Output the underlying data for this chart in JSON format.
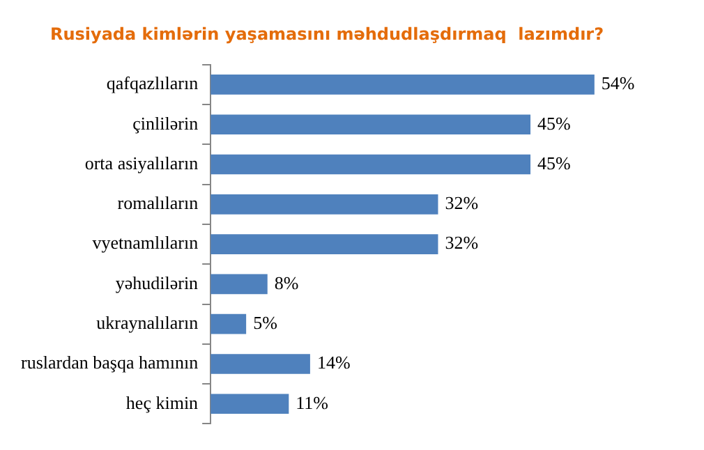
{
  "chart_data": {
    "type": "bar",
    "orientation": "horizontal",
    "title": "Rusiyada kimlərin yaşamasını məhdudlaşdırmaq  lazımdır?",
    "categories": [
      "qafqazlıların",
      "çinlilərin",
      "orta asiyalıların",
      "romalıların",
      "vyetnamlıların",
      "yəhudilərin",
      "ukraynalıların",
      "ruslardan başqa hamının",
      "heç kimin"
    ],
    "values": [
      54,
      45,
      45,
      32,
      32,
      8,
      5,
      14,
      11
    ],
    "value_labels": [
      "54%",
      "45%",
      "45%",
      "32%",
      "32%",
      "8%",
      "5%",
      "14%",
      "11%"
    ],
    "color": "#4f81bd",
    "grid": false,
    "legend": false
  }
}
